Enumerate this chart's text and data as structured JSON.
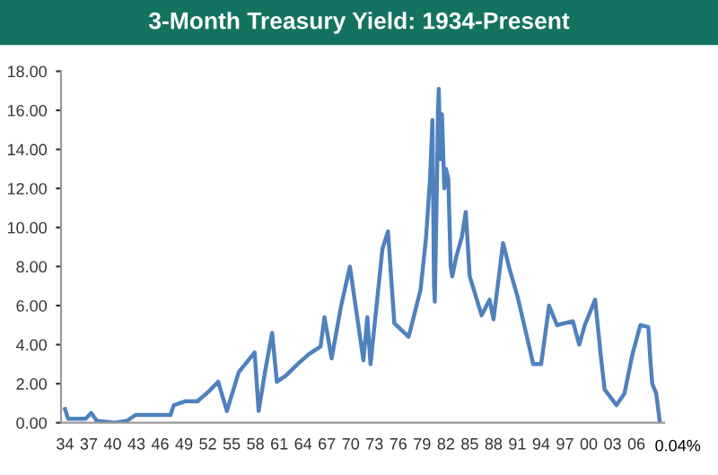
{
  "chart_data": {
    "type": "line",
    "title": "3-Month Treasury Yield: 1934-Present",
    "x": [
      1934.0,
      1934.4,
      1936.6,
      1937.3,
      1938.0,
      1940.3,
      1941.8,
      1942.9,
      1947.3,
      1947.7,
      1949.2,
      1950.7,
      1952.1,
      1953.3,
      1954.4,
      1955.9,
      1957.3,
      1957.9,
      1958.4,
      1959.2,
      1960.1,
      1960.7,
      1961.8,
      1963.3,
      1964.7,
      1966.2,
      1966.7,
      1967.6,
      1968.8,
      1969.9,
      1971.6,
      1972.1,
      1972.5,
      1974.0,
      1974.7,
      1975.5,
      1977.3,
      1978.8,
      1979.5,
      1980.0,
      1980.3,
      1980.5,
      1980.6,
      1980.9,
      1981.0,
      1981.1,
      1981.3,
      1981.5,
      1981.8,
      1982.0,
      1982.3,
      1982.6,
      1982.8,
      1983.3,
      1984.0,
      1984.5,
      1985.0,
      1986.5,
      1987.5,
      1988.0,
      1989.2,
      1990.0,
      1991.0,
      1992.5,
      1993.0,
      1994.0,
      1995.0,
      1996.0,
      1998.0,
      1998.8,
      1999.5,
      2000.8,
      2001.5,
      2002.0,
      2003.5,
      2004.5,
      2005.5,
      2006.5,
      2007.5,
      2007.8,
      2008.0,
      2008.5,
      2008.95
    ],
    "series": [
      {
        "color": "#4f81bd",
        "values": [
          0.7,
          0.2,
          0.2,
          0.5,
          0.1,
          0.0,
          0.1,
          0.4,
          0.4,
          0.9,
          1.1,
          1.1,
          1.6,
          2.1,
          0.6,
          2.6,
          3.3,
          3.6,
          0.6,
          2.6,
          4.6,
          2.1,
          2.4,
          3.0,
          3.5,
          3.9,
          5.4,
          3.3,
          6.0,
          8.0,
          3.2,
          5.4,
          3.0,
          8.9,
          9.8,
          5.1,
          4.4,
          6.8,
          9.5,
          12.5,
          15.5,
          7.0,
          6.2,
          13.0,
          16.0,
          17.1,
          13.5,
          15.8,
          12.0,
          13.0,
          12.5,
          8.0,
          7.5,
          8.5,
          9.5,
          10.8,
          7.5,
          5.5,
          6.3,
          5.3,
          9.2,
          7.9,
          6.5,
          3.9,
          3.0,
          3.0,
          6.0,
          5.0,
          5.2,
          4.0,
          5.0,
          6.3,
          3.5,
          1.7,
          0.9,
          1.5,
          3.5,
          5.0,
          4.9,
          3.0,
          2.0,
          1.5,
          0.04
        ]
      }
    ],
    "xlim": [
      1933.5,
      2009.5
    ],
    "xticks": [
      {
        "value": 1934,
        "label": "34"
      },
      {
        "value": 1937,
        "label": "37"
      },
      {
        "value": 1940,
        "label": "40"
      },
      {
        "value": 1943,
        "label": "43"
      },
      {
        "value": 1946,
        "label": "46"
      },
      {
        "value": 1949,
        "label": "49"
      },
      {
        "value": 1952,
        "label": "52"
      },
      {
        "value": 1955,
        "label": "55"
      },
      {
        "value": 1958,
        "label": "58"
      },
      {
        "value": 1961,
        "label": "61"
      },
      {
        "value": 1964,
        "label": "64"
      },
      {
        "value": 1967,
        "label": "67"
      },
      {
        "value": 1970,
        "label": "70"
      },
      {
        "value": 1973,
        "label": "73"
      },
      {
        "value": 1976,
        "label": "76"
      },
      {
        "value": 1979,
        "label": "79"
      },
      {
        "value": 1982,
        "label": "82"
      },
      {
        "value": 1985,
        "label": "85"
      },
      {
        "value": 1988,
        "label": "88"
      },
      {
        "value": 1991,
        "label": "91"
      },
      {
        "value": 1994,
        "label": "94"
      },
      {
        "value": 1997,
        "label": "97"
      },
      {
        "value": 2000,
        "label": "00"
      },
      {
        "value": 2003,
        "label": "03"
      },
      {
        "value": 2006,
        "label": "06"
      }
    ],
    "ylim": [
      0,
      18
    ],
    "yticks": [
      {
        "value": 0,
        "label": "0.00"
      },
      {
        "value": 2,
        "label": "2.00"
      },
      {
        "value": 4,
        "label": "4.00"
      },
      {
        "value": 6,
        "label": "6.00"
      },
      {
        "value": 8,
        "label": "8.00"
      },
      {
        "value": 10,
        "label": "10.00"
      },
      {
        "value": 12,
        "label": "12.00"
      },
      {
        "value": 14,
        "label": "14.00"
      },
      {
        "value": 16,
        "label": "16.00"
      },
      {
        "value": 18,
        "label": "18.00"
      }
    ],
    "annotations": [
      {
        "text": "0.04%",
        "x": 2008.95,
        "y": 0.04
      }
    ],
    "grid": false,
    "legend": false,
    "marker": "none",
    "line_style": "solid"
  }
}
